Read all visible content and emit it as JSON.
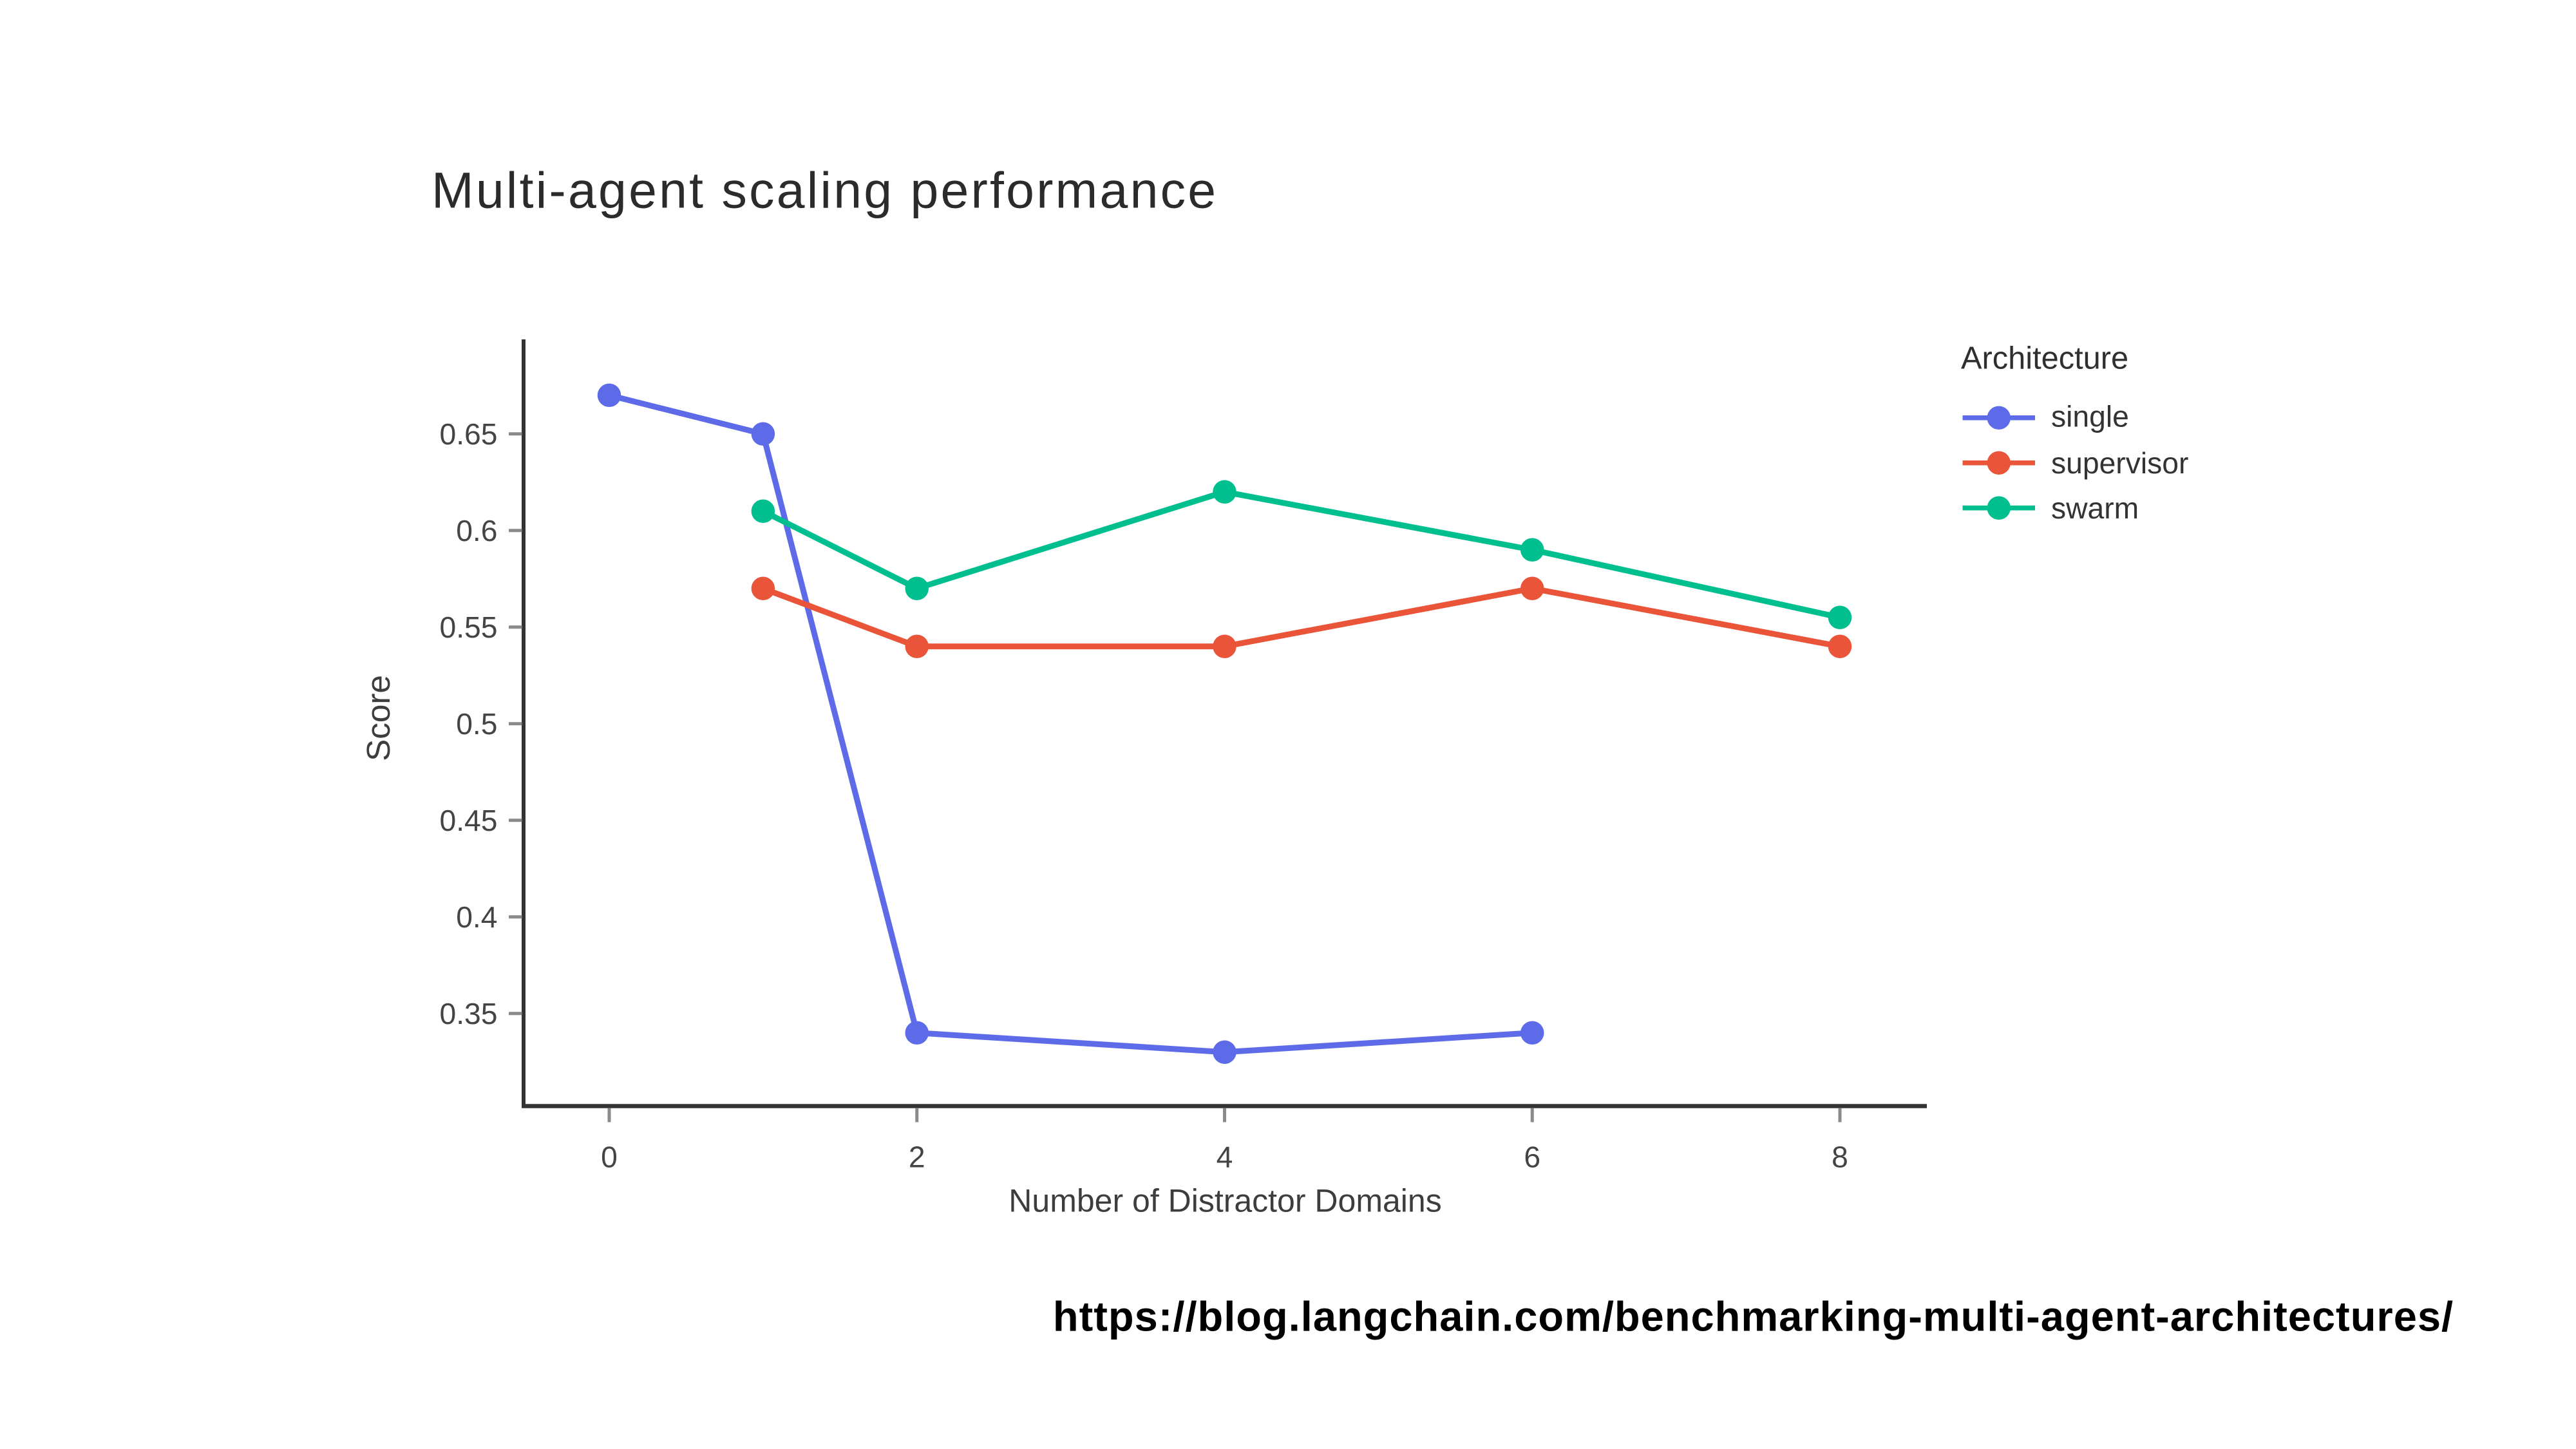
{
  "title": {
    "text": "Multi-agent scaling performance"
  },
  "source": {
    "url_text": "https://blog.langchain.com/benchmarking-multi-agent-architectures/"
  },
  "chart_data": {
    "type": "line",
    "title": "Multi-agent scaling performance",
    "xlabel": "Number of Distractor Domains",
    "ylabel": "Score",
    "x_ticks": [
      0,
      2,
      4,
      6,
      8
    ],
    "x_tick_labels": [
      "0",
      "2",
      "4",
      "6",
      "8"
    ],
    "y_ticks": [
      0.65,
      0.6,
      0.55,
      0.5,
      0.45,
      0.4,
      0.35
    ],
    "y_tick_labels": [
      "0.65",
      "0.6",
      "0.55",
      "0.5",
      "0.45",
      "0.4",
      "0.35"
    ],
    "xlim": [
      -0.56,
      8.56
    ],
    "ylim": [
      0.302,
      0.699
    ],
    "grid": false,
    "legend": {
      "title": "Architecture",
      "position": "right"
    },
    "series": [
      {
        "name": "single",
        "color": "#5E6BE9",
        "x": [
          0,
          1,
          2,
          4,
          6
        ],
        "y": [
          0.67,
          0.65,
          0.34,
          0.33,
          0.34
        ]
      },
      {
        "name": "supervisor",
        "color": "#EA5439",
        "x": [
          1,
          2,
          4,
          6,
          8
        ],
        "y": [
          0.57,
          0.54,
          0.54,
          0.57,
          0.54
        ]
      },
      {
        "name": "swarm",
        "color": "#00BF8F",
        "x": [
          1,
          2,
          4,
          6,
          8
        ],
        "y": [
          0.61,
          0.57,
          0.62,
          0.59,
          0.555
        ]
      }
    ],
    "axis_style": {
      "spine_color": "#333333",
      "tick_mark_color": "#8a8a8a",
      "tick_label_color": "#444444"
    }
  }
}
